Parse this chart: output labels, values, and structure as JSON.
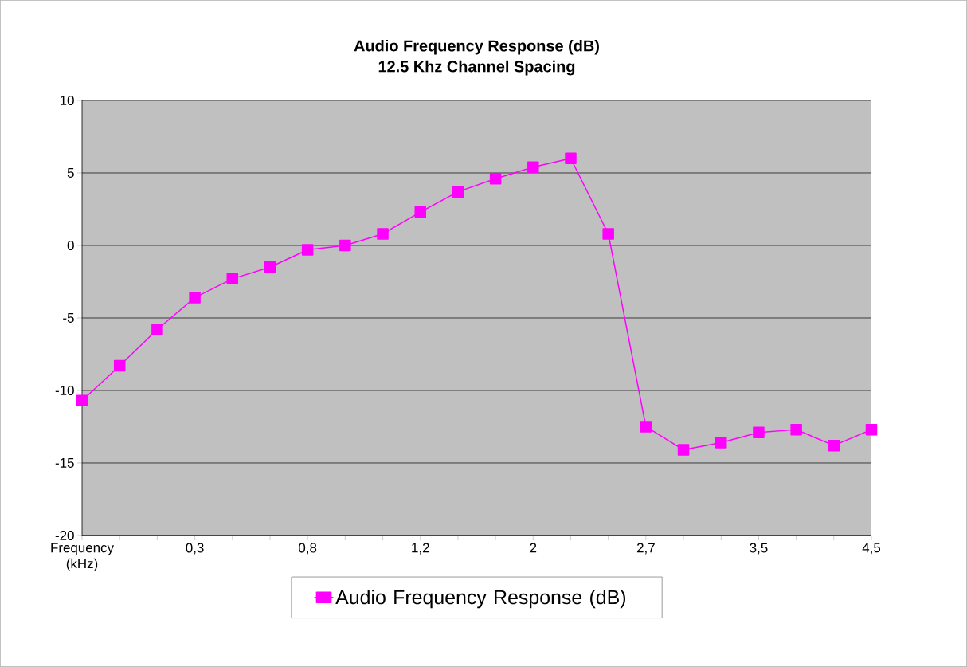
{
  "chart_data": {
    "type": "line",
    "title": "Audio Frequency Response (dB)",
    "subtitle": "12.5 Khz Channel Spacing",
    "categories": [
      "Frequency (kHz)",
      null,
      null,
      "0,3",
      null,
      null,
      "0,8",
      null,
      null,
      "1,2",
      null,
      null,
      "2",
      null,
      null,
      "2,7",
      null,
      null,
      "3,5",
      null,
      null,
      "4,5"
    ],
    "series": [
      {
        "name": "Audio Frequency Response (dB)",
        "color": "#ff00ff",
        "values": [
          -10.7,
          -8.3,
          -5.8,
          -3.6,
          -2.3,
          -1.5,
          -0.3,
          0,
          0.8,
          2.3,
          3.7,
          4.6,
          5.4,
          6.0,
          0.8,
          -12.5,
          -14.1,
          -13.6,
          -12.9,
          -12.7,
          -13.8,
          -12.7
        ]
      }
    ],
    "ylim": [
      -20,
      10
    ],
    "yticks": [
      -20,
      -15,
      -10,
      -5,
      0,
      5,
      10
    ],
    "grid": "y",
    "legend": "bottom",
    "marker": "square",
    "line_style": "solid"
  }
}
